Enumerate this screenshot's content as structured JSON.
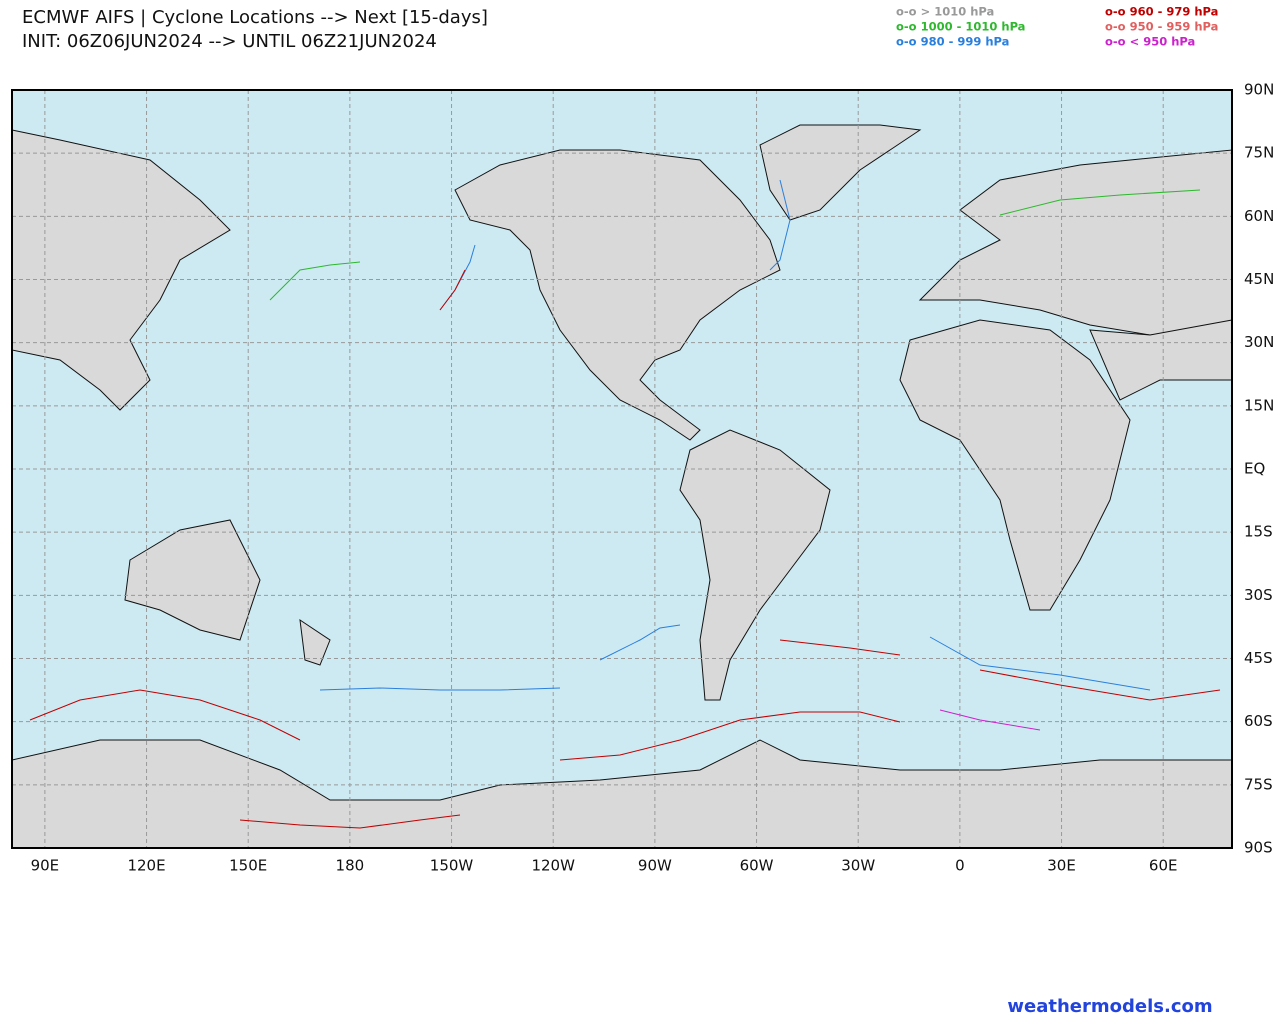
{
  "header": {
    "title": "ECMWF AIFS | Cyclone Locations --> Next [15-days]",
    "subtitle": "INIT: 06Z06JUN2024 --> UNTIL 06Z21JUN2024"
  },
  "legend": [
    {
      "label": "o-o > 1010 hPa",
      "color": "#999999"
    },
    {
      "label": "o-o 1000 - 1010 hPa",
      "color": "#2eb82e"
    },
    {
      "label": "o-o 980 - 999 hPa",
      "color": "#2a7fdc"
    },
    {
      "label": "o-o 960 - 979 hPa",
      "color": "#c00000"
    },
    {
      "label": "o-o 950 - 959 hPa",
      "color": "#e06060"
    },
    {
      "label": "o-o < 950 hPa",
      "color": "#cc22cc"
    }
  ],
  "map": {
    "lon_ticks": [
      {
        "value": 90,
        "label": "90E"
      },
      {
        "value": 120,
        "label": "120E"
      },
      {
        "value": 150,
        "label": "150E"
      },
      {
        "value": 180,
        "label": "180"
      },
      {
        "value": -150,
        "label": "150W"
      },
      {
        "value": -120,
        "label": "120W"
      },
      {
        "value": -90,
        "label": "90W"
      },
      {
        "value": -60,
        "label": "60W"
      },
      {
        "value": -30,
        "label": "30W"
      },
      {
        "value": 0,
        "label": "0"
      },
      {
        "value": 30,
        "label": "30E"
      },
      {
        "value": 60,
        "label": "60E"
      }
    ],
    "lat_ticks": [
      {
        "value": 90,
        "label": "90N"
      },
      {
        "value": 75,
        "label": "75N"
      },
      {
        "value": 60,
        "label": "60N"
      },
      {
        "value": 45,
        "label": "45N"
      },
      {
        "value": 30,
        "label": "30N"
      },
      {
        "value": 15,
        "label": "15N"
      },
      {
        "value": 0,
        "label": "EQ"
      },
      {
        "value": -15,
        "label": "15S"
      },
      {
        "value": -30,
        "label": "30S"
      },
      {
        "value": -45,
        "label": "45S"
      },
      {
        "value": -60,
        "label": "60S"
      },
      {
        "value": -75,
        "label": "75S"
      },
      {
        "value": -90,
        "label": "90S"
      }
    ]
  },
  "footer": {
    "credit": "weathermodels.com"
  }
}
